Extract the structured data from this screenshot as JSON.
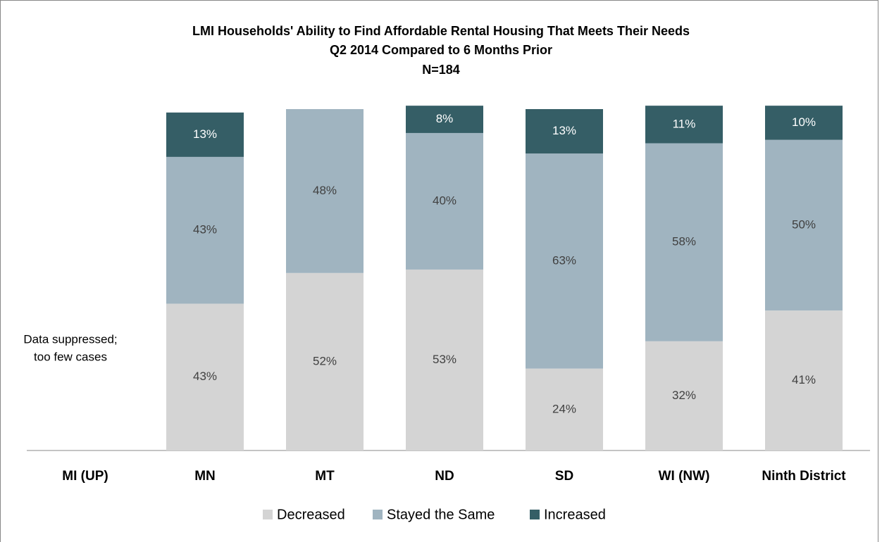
{
  "chart_data": {
    "type": "bar",
    "stacked": true,
    "title": "LMI Households' Ability to Find Affordable Rental Housing That Meets Their Needs",
    "subtitle": "Q2 2014 Compared to 6 Months Prior",
    "note": "N=184",
    "annotation": [
      "Data suppressed;",
      "too few cases"
    ],
    "categories": [
      "MI (UP)",
      "MN",
      "MT",
      "ND",
      "SD",
      "WI (NW)",
      "Ninth District"
    ],
    "series": [
      {
        "name": "Decreased",
        "color": "#d4d4d4",
        "values": [
          null,
          43,
          52,
          53,
          24,
          32,
          41
        ],
        "value_labels": [
          null,
          "43%",
          "52%",
          "53%",
          "24%",
          "32%",
          "41%"
        ]
      },
      {
        "name": "Stayed the Same",
        "color": "#a0b4c0",
        "values": [
          null,
          43,
          48,
          40,
          63,
          58,
          50
        ],
        "value_labels": [
          null,
          "43%",
          "48%",
          "40%",
          "63%",
          "58%",
          "50%"
        ]
      },
      {
        "name": "Increased",
        "color": "#355e66",
        "values": [
          null,
          13,
          null,
          8,
          13,
          11,
          10
        ],
        "value_labels": [
          null,
          "13%",
          null,
          "8%",
          "13%",
          "11%",
          "10%"
        ]
      }
    ],
    "ylim": [
      0,
      100
    ],
    "legend": "bottom"
  }
}
